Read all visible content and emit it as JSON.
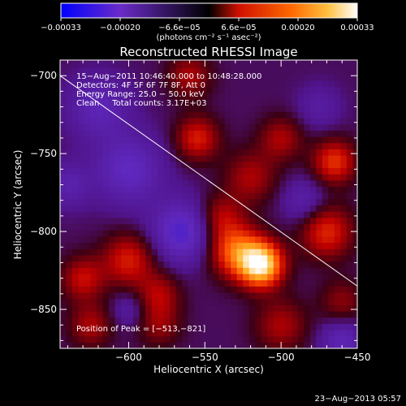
{
  "chart_data": {
    "type": "heatmap",
    "title": "Reconstructed RHESSI Image",
    "xlabel": "Heliocentric X (arcsec)",
    "ylabel": "Heliocentric Y (arcsec)",
    "xlim": [
      -645,
      -450
    ],
    "ylim": [
      -875,
      -690
    ],
    "x_ticks": [
      -600,
      -550,
      -500,
      -450
    ],
    "x_tick_labels": [
      "−600",
      "−550",
      "−500",
      "−450"
    ],
    "y_ticks": [
      -700,
      -750,
      -800,
      -850
    ],
    "y_tick_labels": [
      "−700",
      "−750",
      "−800",
      "−850"
    ],
    "colorbar": {
      "range": [
        -0.00033,
        0.00033
      ],
      "tick_labels": [
        "−0.00033",
        "−0.00020",
        "−6.6e−05",
        "6.6e−05",
        "0.00020",
        "0.00033"
      ],
      "unit_label": "(photons cm⁻² s⁻¹ asec⁻²)",
      "colors": [
        "#0000ff",
        "#6a2bc8",
        "#000000",
        "#ff3000",
        "#ffa000",
        "#ffffff"
      ]
    },
    "annotations": [
      "15−Aug−2011 10:46:40.000 to 10:48:28.000",
      "Detectors: 4F 5F 6F 7F 8F, Att 0",
      "Energy Range: 25.0 − 50.0 keV",
      "Clean     Total counts: 3.17E+03"
    ],
    "peak_label": "Position of Peak = [−513,−821]",
    "peak": {
      "x": -513,
      "y": -821
    },
    "limb_line": [
      [
        -645,
        -700
      ],
      [
        -450,
        -835
      ]
    ],
    "blobs": [
      {
        "x": -513,
        "y": -821,
        "v": 0.00033,
        "s": 10
      },
      {
        "x": -530,
        "y": -812,
        "v": 0.0002,
        "s": 12
      },
      {
        "x": -470,
        "y": -800,
        "v": 0.00015,
        "s": 12
      },
      {
        "x": -520,
        "y": -765,
        "v": 0.0001,
        "s": 12
      },
      {
        "x": -540,
        "y": -790,
        "v": 0.0001,
        "s": 10
      },
      {
        "x": -555,
        "y": -740,
        "v": 0.00014,
        "s": 10
      },
      {
        "x": -560,
        "y": -700,
        "v": 0.0001,
        "s": 10
      },
      {
        "x": -465,
        "y": -755,
        "v": 0.00016,
        "s": 10
      },
      {
        "x": -500,
        "y": -740,
        "v": 0.0001,
        "s": 10
      },
      {
        "x": -600,
        "y": -818,
        "v": 0.00014,
        "s": 12
      },
      {
        "x": -630,
        "y": -830,
        "v": 0.00012,
        "s": 10
      },
      {
        "x": -580,
        "y": -840,
        "v": 0.0001,
        "s": 10
      },
      {
        "x": -625,
        "y": -860,
        "v": 0.0001,
        "s": 10
      },
      {
        "x": -580,
        "y": -860,
        "v": 8e-05,
        "s": 10
      },
      {
        "x": -500,
        "y": -860,
        "v": 0.0001,
        "s": 12
      },
      {
        "x": -460,
        "y": -845,
        "v": 8e-05,
        "s": 10
      },
      {
        "x": -565,
        "y": -800,
        "v": -0.00015,
        "s": 14
      },
      {
        "x": -600,
        "y": -760,
        "v": -0.00012,
        "s": 16
      },
      {
        "x": -620,
        "y": -720,
        "v": -0.0001,
        "s": 14
      },
      {
        "x": -485,
        "y": -780,
        "v": -8e-05,
        "s": 10
      },
      {
        "x": -460,
        "y": -870,
        "v": -0.0001,
        "s": 10
      },
      {
        "x": -640,
        "y": -770,
        "v": -8e-05,
        "s": 10
      },
      {
        "x": -475,
        "y": -720,
        "v": -6e-05,
        "s": 10
      },
      {
        "x": -600,
        "y": -850,
        "v": -6e-05,
        "s": 8
      }
    ]
  },
  "footer": {
    "date": "23−Aug−2013 05:57"
  }
}
